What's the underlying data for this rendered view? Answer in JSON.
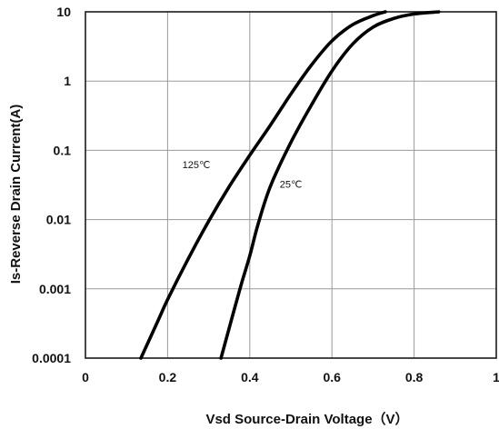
{
  "chart_data": {
    "type": "line",
    "xlabel": "Vsd Source-Drain Voltage（V）",
    "ylabel": "Is-Reverse Drain Current(A)",
    "xlim": [
      0,
      1
    ],
    "ylim": [
      0.0001,
      10
    ],
    "yscale": "log",
    "grid": true,
    "x_ticks": [
      "0",
      "0.2",
      "0.4",
      "0.6",
      "0.8",
      "1"
    ],
    "y_ticks": [
      "10",
      "1",
      "0.1",
      "0.01",
      "0.001",
      "0.0001"
    ],
    "series": [
      {
        "name": "125℃",
        "color": "#000000",
        "points": [
          [
            0.135,
            0.0001
          ],
          [
            0.175,
            0.00033
          ],
          [
            0.2,
            0.0007
          ],
          [
            0.25,
            0.0027
          ],
          [
            0.3,
            0.0095
          ],
          [
            0.35,
            0.03
          ],
          [
            0.4,
            0.085
          ],
          [
            0.45,
            0.23
          ],
          [
            0.5,
            0.65
          ],
          [
            0.55,
            1.7
          ],
          [
            0.6,
            3.8
          ],
          [
            0.65,
            6.5
          ],
          [
            0.7,
            8.8
          ],
          [
            0.73,
            10
          ]
        ]
      },
      {
        "name": "25℃",
        "color": "#000000",
        "points": [
          [
            0.33,
            0.0001
          ],
          [
            0.36,
            0.00045
          ],
          [
            0.38,
            0.0012
          ],
          [
            0.4,
            0.003
          ],
          [
            0.42,
            0.0085
          ],
          [
            0.45,
            0.03
          ],
          [
            0.5,
            0.13
          ],
          [
            0.55,
            0.45
          ],
          [
            0.6,
            1.4
          ],
          [
            0.65,
            3.4
          ],
          [
            0.7,
            6.0
          ],
          [
            0.75,
            8.0
          ],
          [
            0.8,
            9.3
          ],
          [
            0.86,
            10
          ]
        ]
      }
    ]
  }
}
